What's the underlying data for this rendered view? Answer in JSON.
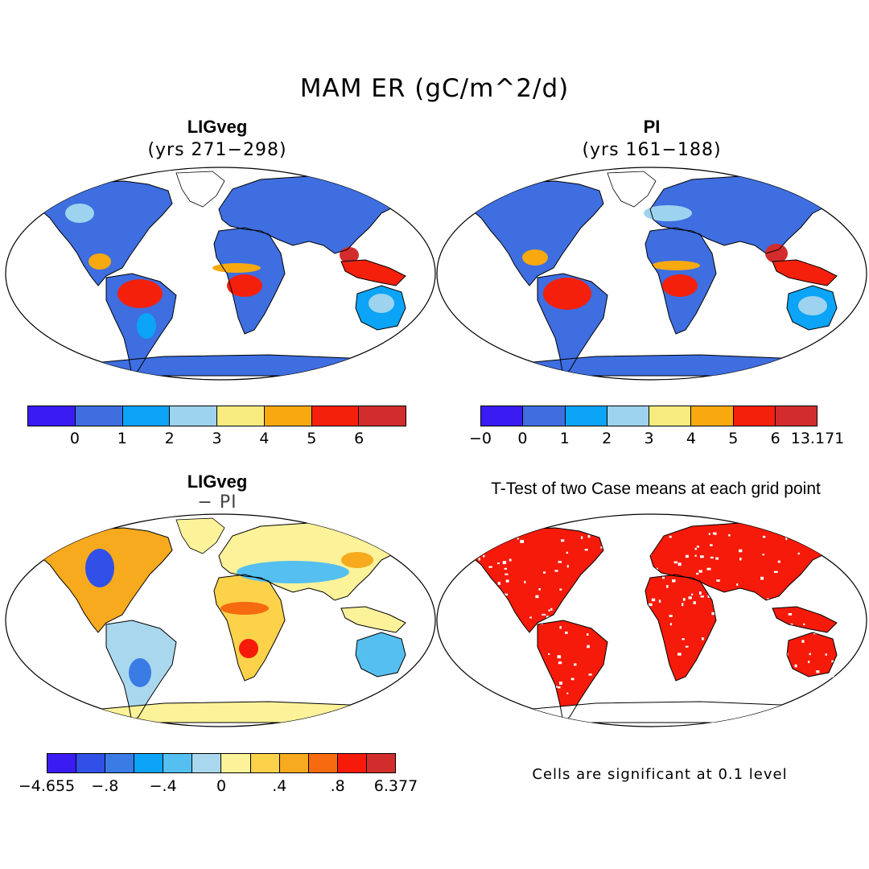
{
  "main_title": "MAM ER (gC/m^2/d)",
  "panels": {
    "ligveg": {
      "title": "LIGveg",
      "subtitle": "(yrs 271−298)"
    },
    "pi": {
      "title": "PI",
      "subtitle": "(yrs 161−188)"
    },
    "diff": {
      "title": "LIGveg",
      "subtitle": "− PI"
    },
    "ttest": {
      "title": "T-Test of two Case means at each grid point",
      "note": "Cells are significant at 0.1 level"
    }
  },
  "colorbars": {
    "top_left": {
      "colors": [
        "#3a1cf2",
        "#3e6ee0",
        "#0ba4f7",
        "#9dd3ee",
        "#f8ec80",
        "#f7a90f",
        "#f5200c",
        "#d32c2c"
      ],
      "labels": [
        "0",
        "1",
        "2",
        "3",
        "4",
        "5",
        "6"
      ]
    },
    "top_right": {
      "colors": [
        "#3a1cf2",
        "#3e6ee0",
        "#0ba4f7",
        "#9dd3ee",
        "#f8ec80",
        "#f7a90f",
        "#f5200c",
        "#d32c2c"
      ],
      "labels": [
        "−0",
        "0",
        "1",
        "2",
        "3",
        "4",
        "5",
        "6",
        "13.171"
      ]
    },
    "bottom_left": {
      "colors": [
        "#3a1cf2",
        "#3150e8",
        "#3a7be6",
        "#0ba4f7",
        "#55bff0",
        "#a9d8ee",
        "#fcf29a",
        "#fbd24a",
        "#f7aa1d",
        "#f66a10",
        "#f51a0a",
        "#d32c2c"
      ],
      "labels": [
        "−4.655",
        "−.8",
        "−.4",
        "0",
        ".4",
        ".8",
        "6.377"
      ]
    }
  },
  "map_colors": {
    "ocean": "#ffffff",
    "coast": "#000000",
    "significant": "#f51a0a"
  }
}
